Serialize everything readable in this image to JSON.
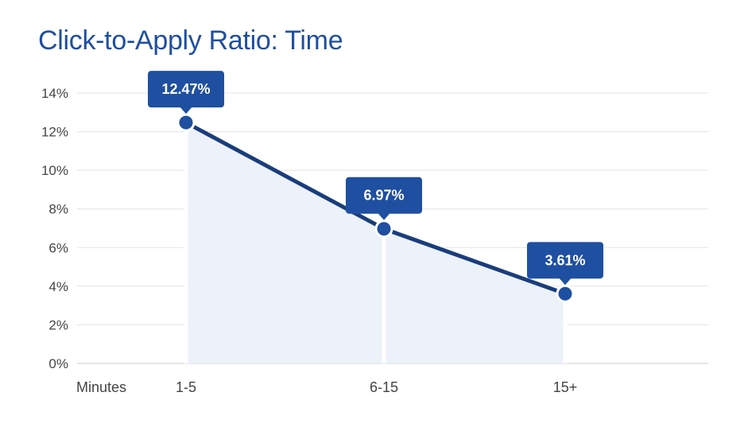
{
  "chart_data": {
    "type": "area",
    "title": "Click-to-Apply Ratio: Time",
    "xlabel": "Minutes",
    "ylabel": "",
    "categories": [
      "1-5",
      "6-15",
      "15+"
    ],
    "values": [
      12.47,
      6.97,
      3.61
    ],
    "data_labels": [
      "12.47%",
      "6.97%",
      "3.61%"
    ],
    "yticks": [
      "0%",
      "2%",
      "4%",
      "6%",
      "8%",
      "10%",
      "12%",
      "14%"
    ],
    "ylim": [
      0,
      14
    ],
    "grid": true,
    "colors": {
      "line": "#1a3d7c",
      "area": "#edf1f9",
      "marker": "#1f4fa0",
      "callout": "#1f4fa0",
      "title": "#1f4fa0",
      "grid": "#e3e3e3"
    }
  }
}
